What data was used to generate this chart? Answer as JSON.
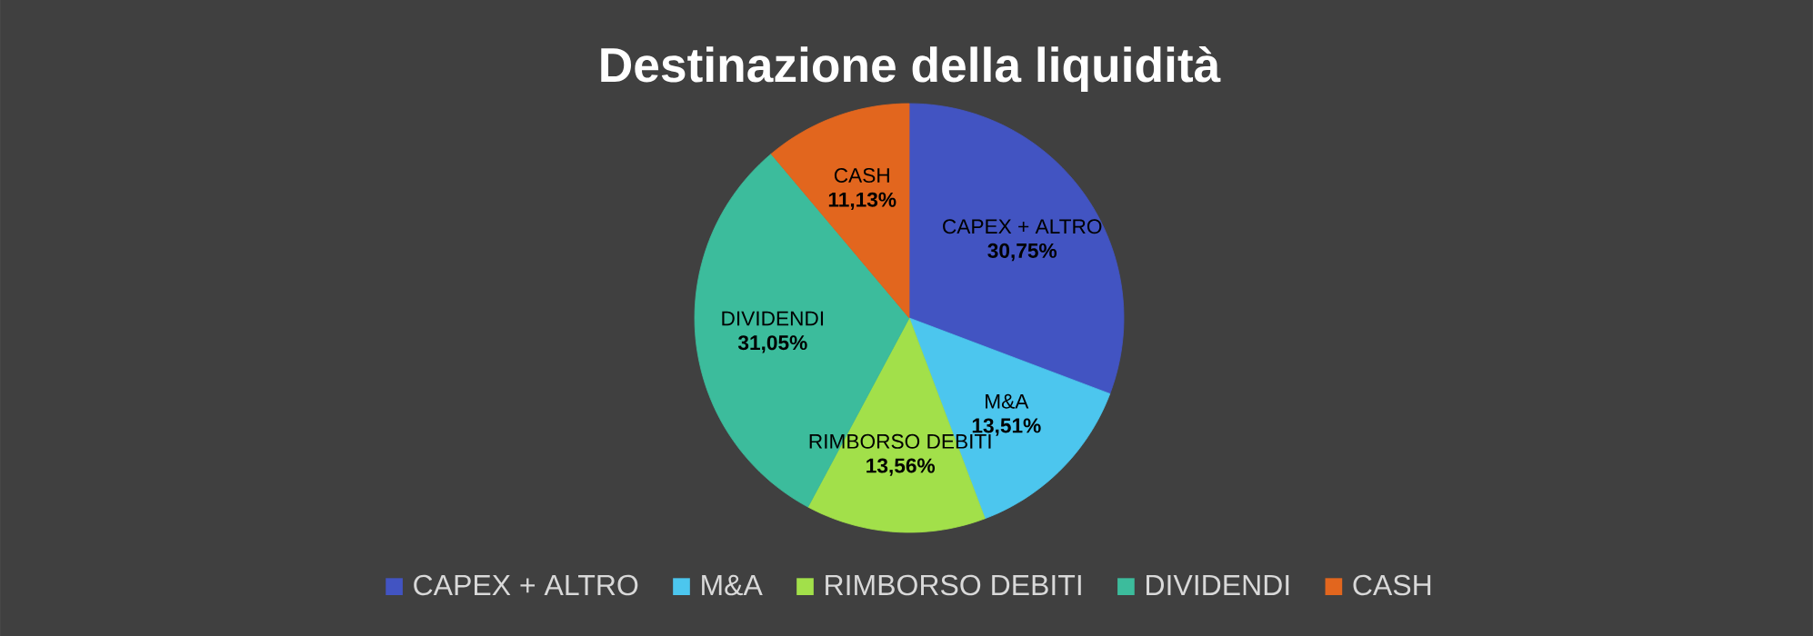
{
  "chart_data": {
    "type": "pie",
    "title": "Destinazione della liquidità",
    "categories": [
      "CAPEX + ALTRO",
      "M&A",
      "RIMBORSO DEBITI",
      "DIVIDENDI",
      "CASH"
    ],
    "values": [
      30.75,
      13.51,
      13.56,
      31.05,
      11.13
    ],
    "value_labels": [
      "30,75%",
      "13,51%",
      "13,56%",
      "31,05%",
      "11,13%"
    ],
    "colors": [
      "#4254c2",
      "#4cc6ee",
      "#a2e04a",
      "#3cbc9c",
      "#e2661e"
    ],
    "legend": "bottom"
  }
}
